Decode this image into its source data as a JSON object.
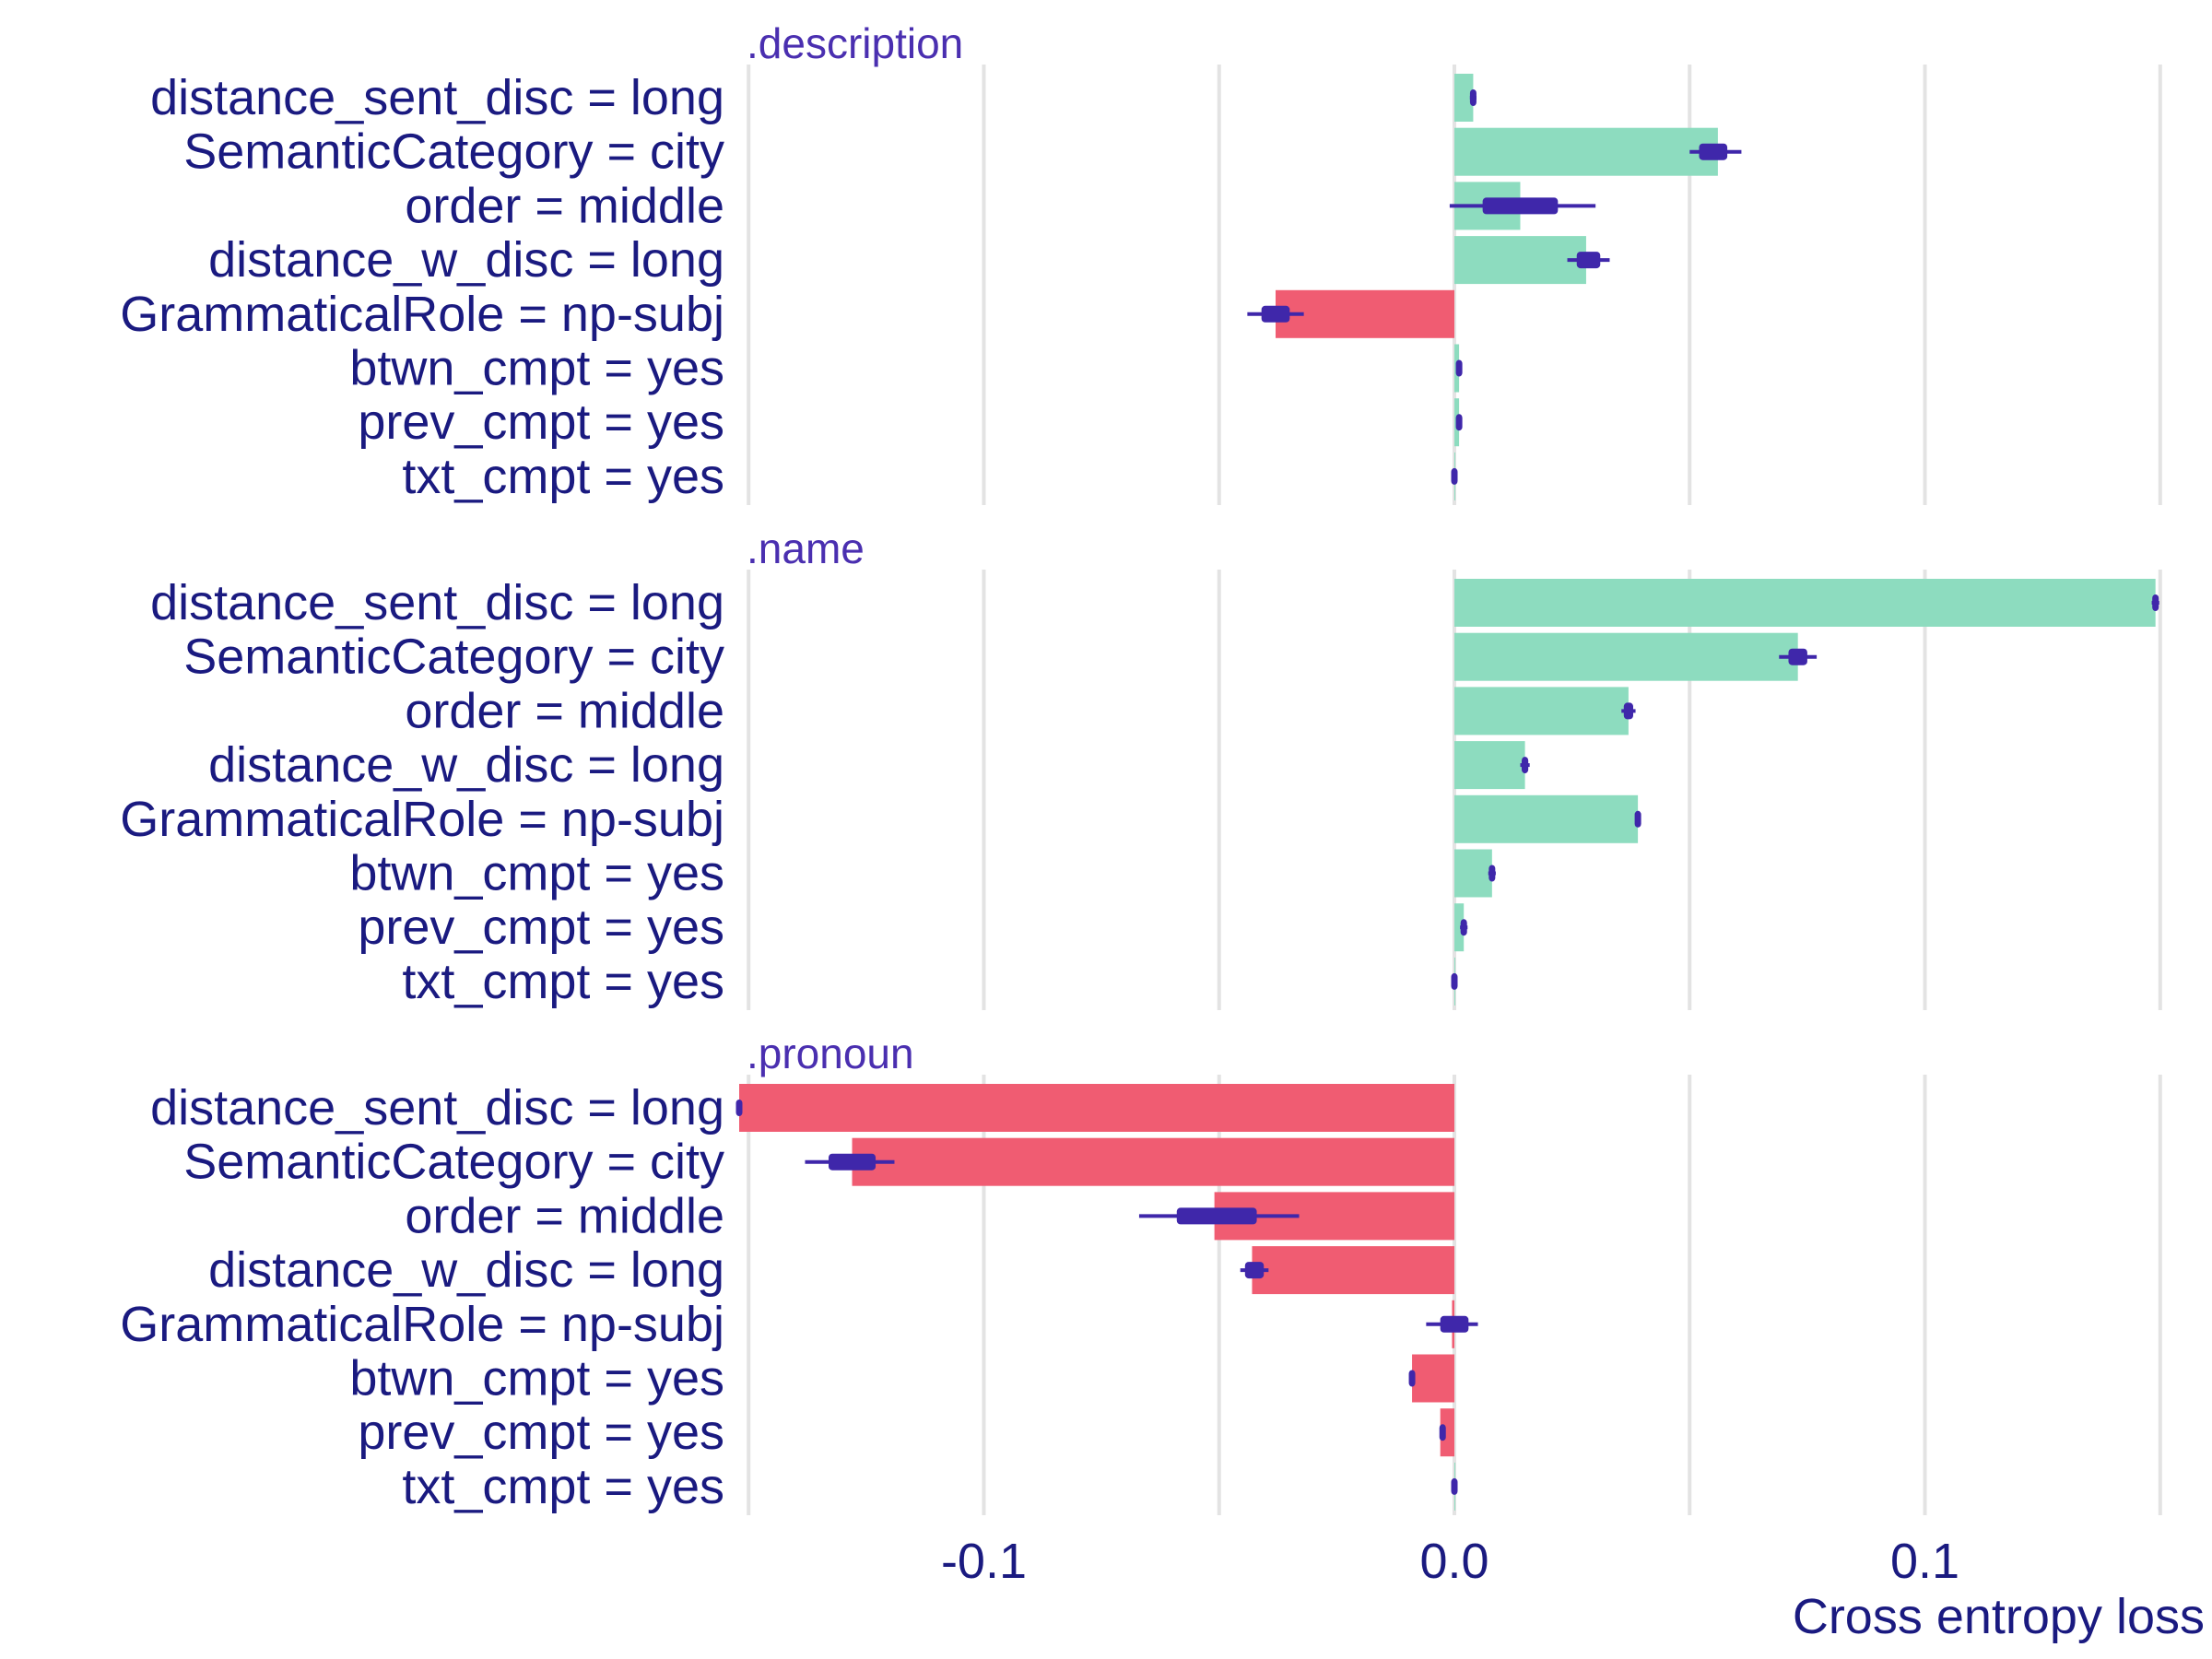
{
  "chart_data": {
    "type": "bar",
    "xlabel": "Cross entropy loss",
    "xlim": [
      -0.152,
      0.152
    ],
    "x_ticks": [
      -0.1,
      0.0,
      0.1
    ],
    "x_tick_labels": [
      "-0.1",
      "0.0",
      "0.1"
    ],
    "grid_values": [
      -0.15,
      -0.1,
      -0.05,
      0.0,
      0.05,
      0.1,
      0.15
    ],
    "grid": true,
    "colors": {
      "positive": "#8ddcbf",
      "negative": "#f05c72",
      "interval": "#3f27aa"
    },
    "categories": [
      "distance_sent_disc = long",
      "SemanticCategory = city",
      "order = middle",
      "distance_w_disc = long",
      "GrammaticalRole = np-subj",
      "btwn_cmpt = yes",
      "prev_cmpt = yes",
      "txt_cmpt = yes"
    ],
    "panels": [
      {
        "title": ".description",
        "values": [
          0.004,
          0.056,
          0.014,
          0.028,
          -0.038,
          0.001,
          0.001,
          0.0
        ],
        "box": [
          [
            0.0035,
            0.0045
          ],
          [
            0.052,
            0.058
          ],
          [
            0.006,
            0.022
          ],
          [
            0.026,
            0.031
          ],
          [
            -0.041,
            -0.035
          ],
          [
            0.0008,
            0.0012
          ],
          [
            0.0008,
            0.0012
          ],
          [
            -0.0002,
            0.0002
          ]
        ],
        "whiskers": [
          [
            0.0033,
            0.0047
          ],
          [
            0.05,
            0.061
          ],
          [
            -0.001,
            0.03
          ],
          [
            0.024,
            0.033
          ],
          [
            -0.044,
            -0.032
          ],
          [
            0.0006,
            0.0014
          ],
          [
            0.0006,
            0.0014
          ],
          [
            -0.0003,
            0.0003
          ]
        ]
      },
      {
        "title": ".name",
        "values": [
          0.149,
          0.073,
          0.037,
          0.015,
          0.039,
          0.008,
          0.002,
          0.0
        ],
        "box": [
          [
            0.1485,
            0.1495
          ],
          [
            0.071,
            0.075
          ],
          [
            0.036,
            0.038
          ],
          [
            0.0143,
            0.0157
          ],
          [
            0.0386,
            0.0394
          ],
          [
            0.0075,
            0.0085
          ],
          [
            0.0015,
            0.0025
          ],
          [
            -0.0002,
            0.0002
          ]
        ],
        "whiskers": [
          [
            0.1482,
            0.1498
          ],
          [
            0.069,
            0.077
          ],
          [
            0.0355,
            0.0385
          ],
          [
            0.014,
            0.016
          ],
          [
            0.0384,
            0.0396
          ],
          [
            0.0072,
            0.0088
          ],
          [
            0.0012,
            0.0028
          ],
          [
            -0.0003,
            0.0003
          ]
        ]
      },
      {
        "title": ".pronoun",
        "values": [
          -0.152,
          -0.128,
          -0.051,
          -0.043,
          -0.0005,
          -0.009,
          -0.003,
          0.0
        ],
        "box": [
          [
            -0.1523,
            -0.1517
          ],
          [
            -0.133,
            -0.123
          ],
          [
            -0.059,
            -0.042
          ],
          [
            -0.0445,
            -0.0405
          ],
          [
            -0.003,
            0.003
          ],
          [
            -0.0093,
            -0.0087
          ],
          [
            -0.0028,
            -0.0022
          ],
          [
            -0.0002,
            0.0002
          ]
        ],
        "whiskers": [
          [
            -0.1525,
            -0.1515
          ],
          [
            -0.138,
            -0.119
          ],
          [
            -0.067,
            -0.033
          ],
          [
            -0.0455,
            -0.0395
          ],
          [
            -0.006,
            0.005
          ],
          [
            -0.0095,
            -0.0085
          ],
          [
            -0.003,
            -0.002
          ],
          [
            -0.0003,
            0.0003
          ]
        ]
      }
    ]
  }
}
